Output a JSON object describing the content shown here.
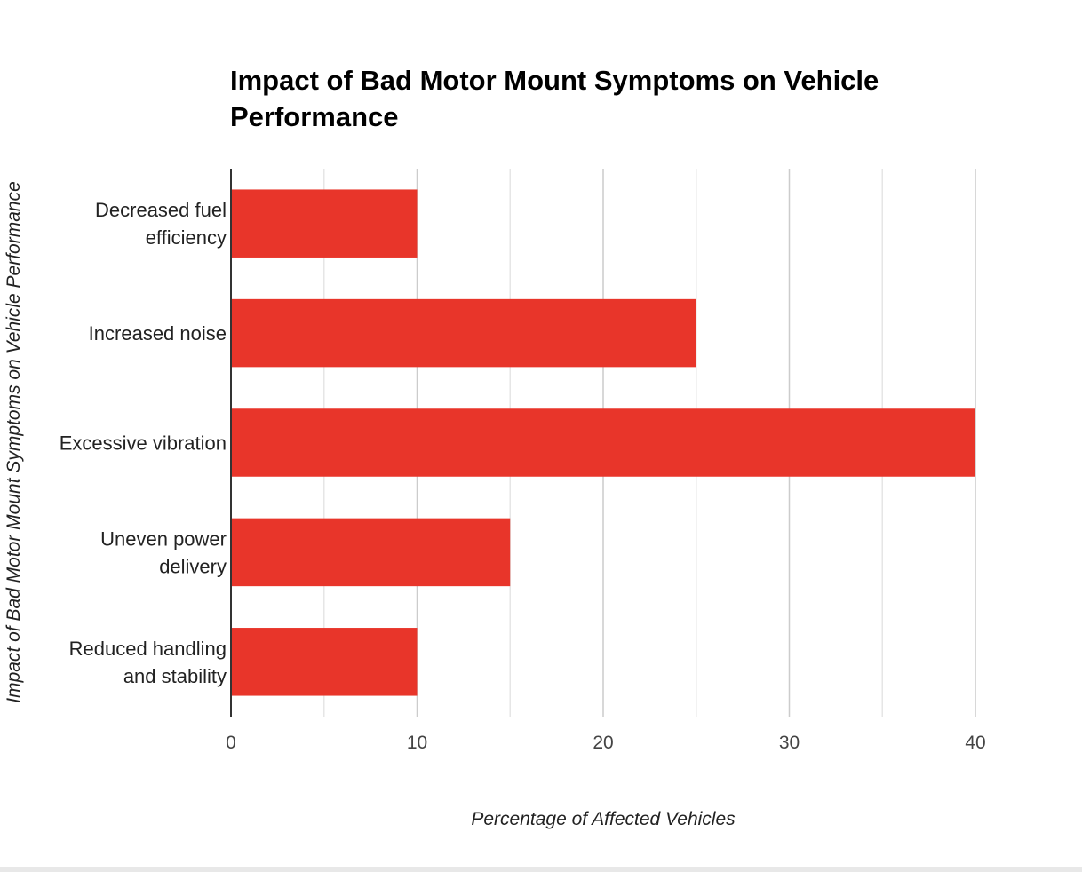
{
  "chart_data": {
    "type": "bar",
    "orientation": "horizontal",
    "title_lines": [
      "Impact of Bad Motor Mount Symptoms on Vehicle",
      "Performance"
    ],
    "xlabel": "Percentage of Affected Vehicles",
    "ylabel": "Impact of Bad Motor Mount Symptoms on Vehicle Performance",
    "categories": [
      [
        "Decreased fuel",
        "efficiency"
      ],
      [
        "Increased noise"
      ],
      [
        "Excessive vibration"
      ],
      [
        "Uneven power",
        "delivery"
      ],
      [
        "Reduced handling",
        "and stability"
      ]
    ],
    "values": [
      10,
      25,
      40,
      15,
      10
    ],
    "xlim": [
      0,
      40
    ],
    "major_ticks": [
      0,
      10,
      20,
      30,
      40
    ],
    "minor_ticks": [
      5,
      15,
      25,
      35
    ],
    "grid": true,
    "legend": "none",
    "bar_color": "#e8352a"
  }
}
